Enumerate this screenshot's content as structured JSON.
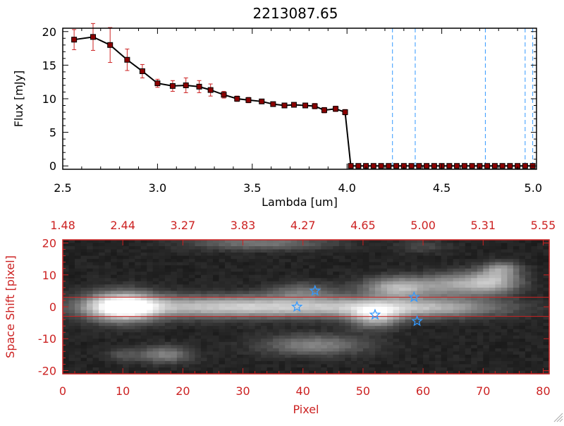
{
  "chart_data": [
    {
      "type": "line",
      "title": "2213087.65",
      "xlabel": "Lambda [um]",
      "ylabel": "Flux [mJy]",
      "xlim": [
        2.5,
        5.0
      ],
      "ylim": [
        -0.5,
        20.5
      ],
      "x_ticks": [
        "2.5",
        "3.0",
        "3.5",
        "4.0",
        "4.5",
        "5.0"
      ],
      "y_ticks": [
        "0",
        "5",
        "10",
        "15",
        "20"
      ],
      "series": [
        {
          "x": [
            2.56,
            2.66,
            2.75,
            2.84,
            2.92,
            3.0,
            3.08,
            3.15,
            3.22,
            3.28,
            3.35,
            3.42,
            3.48,
            3.55,
            3.61,
            3.67,
            3.72,
            3.78,
            3.83,
            3.88,
            3.94,
            3.99,
            4.02,
            4.06,
            4.1,
            4.14,
            4.18,
            4.22,
            4.26,
            4.3,
            4.34,
            4.38,
            4.42,
            4.46,
            4.5,
            4.54,
            4.58,
            4.62,
            4.66,
            4.7,
            4.74,
            4.78,
            4.82,
            4.86,
            4.9,
            4.94,
            4.98
          ],
          "y": [
            18.8,
            19.2,
            18.0,
            15.8,
            14.1,
            12.3,
            11.9,
            12.0,
            11.8,
            11.3,
            10.6,
            10.0,
            9.8,
            9.6,
            9.2,
            9.0,
            9.1,
            9.0,
            8.9,
            8.3,
            8.5,
            8.0,
            0,
            0,
            0,
            0,
            0,
            0,
            0,
            0,
            0,
            0,
            0,
            0,
            0,
            0,
            0,
            0,
            0,
            0,
            0,
            0,
            0,
            0,
            0,
            0,
            0
          ],
          "yerr": [
            1.5,
            2.0,
            2.6,
            1.6,
            1.0,
            0.6,
            0.8,
            1.1,
            0.9,
            0.9,
            0.5,
            0.4,
            0.4,
            0.3,
            0.3,
            0.3,
            0.3,
            0.3,
            0.4,
            0.4,
            0.4,
            0.4,
            0,
            0,
            0,
            0,
            0,
            0,
            0,
            0,
            0,
            0,
            0,
            0,
            0,
            0,
            0,
            0,
            0,
            0,
            0,
            0,
            0,
            0,
            0,
            0,
            0
          ],
          "line_color": "#000000",
          "marker_color": "#8b0000",
          "errorbar_color": "#cc2222"
        }
      ],
      "vlines": {
        "x": [
          4.24,
          4.36,
          4.73,
          4.94,
          4.98
        ],
        "color": "#3399ff",
        "style": "dashed"
      },
      "grid": false
    },
    {
      "type": "heatmap",
      "xlabel": "Pixel",
      "ylabel": "Space Shift [pixel]",
      "xlim": [
        0,
        81
      ],
      "ylim": [
        -21,
        21
      ],
      "x_ticks": [
        "0",
        "10",
        "20",
        "30",
        "40",
        "50",
        "60",
        "70",
        "80"
      ],
      "y_ticks": [
        "-20",
        "-10",
        "0",
        "10",
        "20"
      ],
      "top_axis_ticks": [
        "1.48",
        "2.44",
        "3.27",
        "3.83",
        "4.27",
        "4.65",
        "5.00",
        "5.31",
        "5.55"
      ],
      "axis_color": "#cc2222",
      "extraction_window": [
        -3,
        3
      ],
      "blobs": [
        {
          "x": 10,
          "y": 0,
          "sx": 4,
          "sy": 3,
          "amp": 1.0
        },
        {
          "x": 25,
          "y": 0,
          "sx": 14,
          "sy": 2.3,
          "amp": 0.55
        },
        {
          "x": 48,
          "y": 0,
          "sx": 14,
          "sy": 2.2,
          "amp": 0.42
        },
        {
          "x": 62,
          "y": -0.5,
          "sx": 8,
          "sy": 2,
          "amp": 0.32
        },
        {
          "x": 52,
          "y": -3,
          "sx": 3,
          "sy": 2.5,
          "amp": 0.55
        },
        {
          "x": 56,
          "y": 6,
          "sx": 4,
          "sy": 2.2,
          "amp": 0.6
        },
        {
          "x": 66,
          "y": 7,
          "sx": 4,
          "sy": 2.5,
          "amp": 0.45
        },
        {
          "x": 72,
          "y": 8,
          "sx": 3,
          "sy": 2.5,
          "amp": 0.5
        },
        {
          "x": 73,
          "y": 12,
          "sx": 2,
          "sy": 1.5,
          "amp": 0.35
        },
        {
          "x": 40,
          "y": 5,
          "sx": 4,
          "sy": 1.8,
          "amp": 0.25
        },
        {
          "x": 42,
          "y": -12,
          "sx": 6,
          "sy": 2.2,
          "amp": 0.35
        },
        {
          "x": 17,
          "y": -15,
          "sx": 3,
          "sy": 1.8,
          "amp": 0.35
        },
        {
          "x": 33,
          "y": 20,
          "sx": 8,
          "sy": 1.5,
          "amp": 0.3
        },
        {
          "x": 10,
          "y": -15,
          "sx": 2,
          "sy": 1.5,
          "amp": 0.15
        },
        {
          "x": 60,
          "y": 19,
          "sx": 3,
          "sy": 1.5,
          "amp": 0.12
        }
      ],
      "markers": {
        "symbol": "star",
        "color": "#3399ff",
        "points": [
          {
            "x": 39,
            "y": 0
          },
          {
            "x": 42,
            "y": 5
          },
          {
            "x": 52,
            "y": -2.5
          },
          {
            "x": 58.5,
            "y": 3
          },
          {
            "x": 59,
            "y": -4.5
          }
        ]
      }
    }
  ]
}
